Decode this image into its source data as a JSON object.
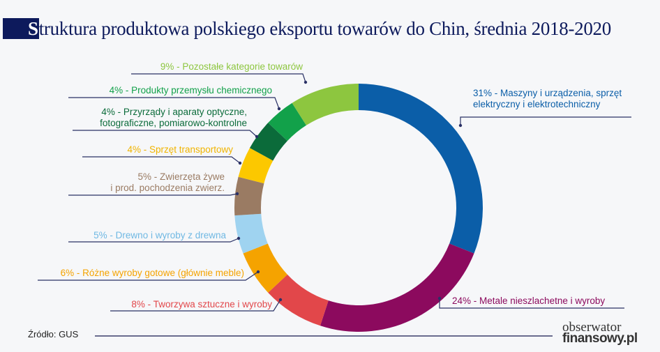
{
  "chart_data": {
    "type": "pie",
    "variant": "donut",
    "title_first_letter": "S",
    "title_rest": "truktura produktowa polskiego eksportu towarów do Chin, średnia 2018-2020",
    "unit": "%",
    "slices": [
      {
        "value": 31,
        "label": "31% - Maszyny i urządzenia, sprzęt",
        "label2": "elektryczny i elektrotechniczny",
        "color": "#0b5ea8"
      },
      {
        "value": 24,
        "label": "24% - Metale nieszlachetne i wyroby",
        "label2": "",
        "color": "#8c0a5e"
      },
      {
        "value": 8,
        "label": "8% - Tworzywa sztuczne i wyroby",
        "label2": "",
        "color": "#e2474a"
      },
      {
        "value": 6,
        "label": "6% - Różne wyroby gotowe (głównie meble)",
        "label2": "",
        "color": "#f5a300"
      },
      {
        "value": 5,
        "label": "5% - Drewno i wyroby z drewna",
        "label2": "",
        "color": "#9fd3f0"
      },
      {
        "value": 5,
        "label": "5% - Zwierzęta żywe",
        "label2": "i prod. pochodzenia zwierz.",
        "color": "#9a7b63"
      },
      {
        "value": 4,
        "label": "4% - Sprzęt transportowy",
        "label2": "",
        "color": "#fcc800"
      },
      {
        "value": 4,
        "label": "4% - Przyrządy i aparaty optyczne,",
        "label2": "fotograficzne, pomiarowo-kontrolne",
        "color": "#0b6b3a"
      },
      {
        "value": 4,
        "label": "4% - Produkty przemysłu chemicznego",
        "label2": "",
        "color": "#12a14a"
      },
      {
        "value": 9,
        "label": "9% - Pozostałe kategorie towarów",
        "label2": "",
        "color": "#8dc63f"
      }
    ]
  },
  "source": "Źródło: GUS",
  "logo": {
    "line1": "obserwator",
    "line2": "finansowy.pl"
  }
}
